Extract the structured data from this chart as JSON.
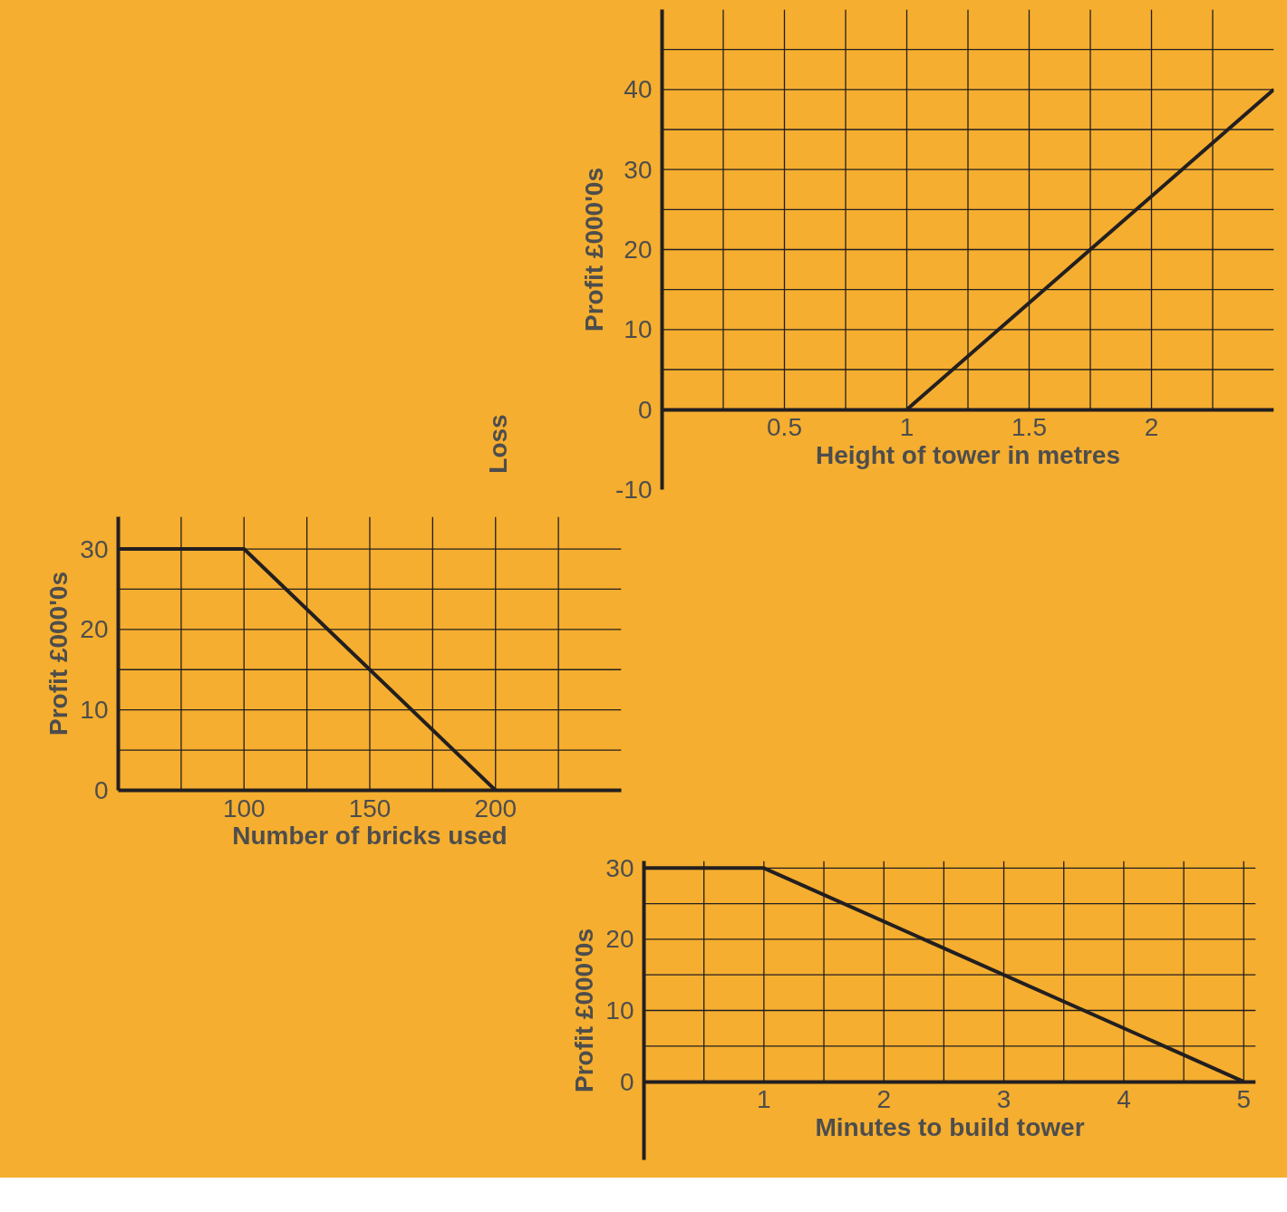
{
  "chart_data": [
    {
      "type": "line",
      "xlabel": "Height of tower in metres",
      "ylabel": "Profit £000'0s",
      "annotations": [
        "Loss"
      ],
      "color": "#231f20",
      "grid": true,
      "x": [
        1,
        2.5
      ],
      "values": [
        0,
        40
      ],
      "xlim": [
        0,
        2.5
      ],
      "ylim": [
        -10,
        50
      ],
      "xticks": [
        {
          "value": 0.25,
          "label": null
        },
        0.5,
        {
          "value": 0.75,
          "label": null
        },
        1,
        {
          "value": 1.25,
          "label": null
        },
        1.5,
        {
          "value": 1.75,
          "label": null
        },
        2,
        {
          "value": 2.25,
          "label": null
        }
      ],
      "yticks": [
        -10,
        0,
        {
          "value": 5,
          "label": null
        },
        10,
        {
          "value": 15,
          "label": null
        },
        20,
        {
          "value": 25,
          "label": null
        },
        30,
        {
          "value": 35,
          "label": null
        },
        40,
        {
          "value": 45,
          "label": null
        }
      ]
    },
    {
      "type": "line",
      "xlabel": "Number of bricks used",
      "ylabel": "Profit £000'0s",
      "color": "#231f20",
      "grid": true,
      "x": [
        50,
        100,
        200
      ],
      "values": [
        30,
        30,
        0
      ],
      "xlim": [
        50,
        250
      ],
      "ylim": [
        0,
        34
      ],
      "xticks": [
        {
          "value": 75,
          "label": null
        },
        100,
        {
          "value": 125,
          "label": null
        },
        150,
        {
          "value": 175,
          "label": null
        },
        200,
        {
          "value": 225,
          "label": null
        }
      ],
      "yticks": [
        0,
        {
          "value": 5,
          "label": null
        },
        10,
        {
          "value": 15,
          "label": null
        },
        20,
        {
          "value": 25,
          "label": null
        },
        30
      ]
    },
    {
      "type": "line",
      "xlabel": "Minutes to build tower",
      "ylabel": "Profit £000'0s",
      "color": "#231f20",
      "grid": true,
      "x": [
        0,
        1,
        5
      ],
      "values": [
        30,
        30,
        0
      ],
      "xlim": [
        0,
        5.1
      ],
      "ylim": [
        -11,
        31
      ],
      "xticks": [
        {
          "value": 0.5,
          "label": null
        },
        1,
        {
          "value": 1.5,
          "label": null
        },
        2,
        {
          "value": 2.5,
          "label": null
        },
        3,
        {
          "value": 3.5,
          "label": null
        },
        4,
        {
          "value": 4.5,
          "label": null
        },
        5
      ],
      "yticks": [
        0,
        {
          "value": 5,
          "label": null
        },
        10,
        {
          "value": 15,
          "label": null
        },
        20,
        {
          "value": 25,
          "label": null
        },
        30
      ]
    }
  ]
}
